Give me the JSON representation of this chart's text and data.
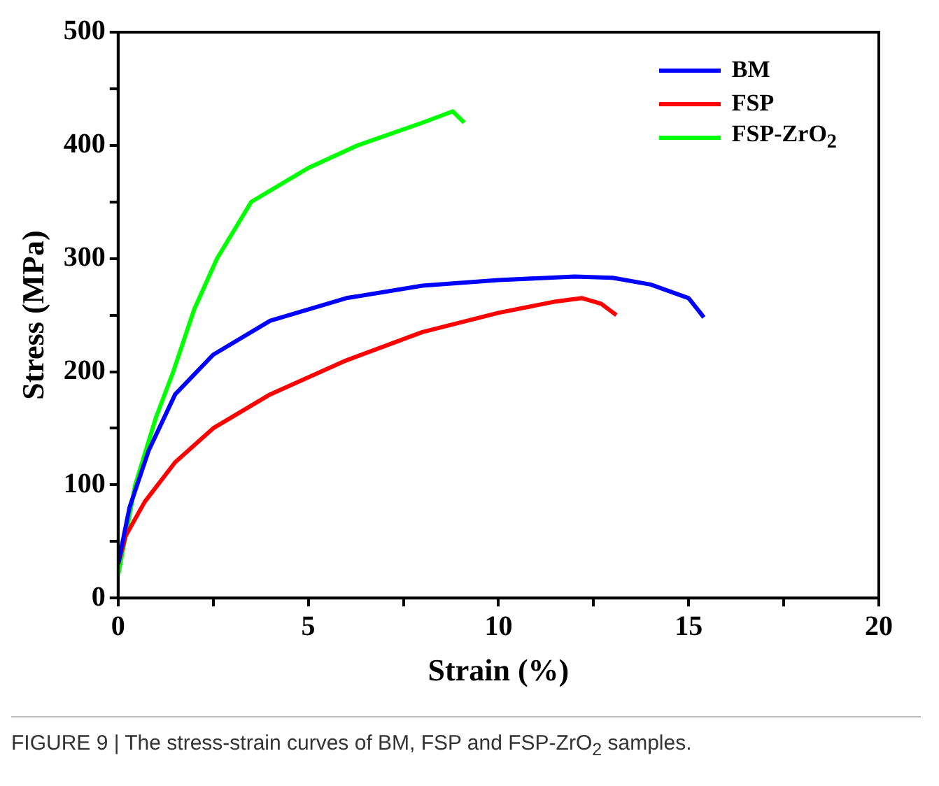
{
  "chart_data": {
    "type": "line",
    "xlabel": "Strain (%)",
    "ylabel": "Stress (MPa)",
    "xlim": [
      0,
      20
    ],
    "xticks": [
      0,
      {
        "value": 2.5,
        "label": null
      },
      5,
      {
        "value": 7.5,
        "label": null
      },
      10,
      {
        "value": 12.5,
        "label": null
      },
      15,
      {
        "value": 17.5,
        "label": null
      },
      20
    ],
    "ylim": [
      0,
      500
    ],
    "yticks": [
      0,
      {
        "value": 50,
        "label": null
      },
      100,
      {
        "value": 150,
        "label": null
      },
      200,
      {
        "value": 250,
        "label": null
      },
      300,
      {
        "value": 350,
        "label": null
      },
      400,
      {
        "value": 450,
        "label": null
      },
      500
    ],
    "grid": false,
    "legend": "top right",
    "marker": "none",
    "line_style": "solid",
    "annotations": [
      "FIGURE 9 | The stress-strain curves of BM, FSP and FSP-ZrO$_{2}$ samples."
    ],
    "series": [
      {
        "name": "BM",
        "color": "#0000ff",
        "x": [
          0,
          0.3,
          0.8,
          1.5,
          2.5,
          4,
          6,
          8,
          10,
          12,
          13,
          14,
          15,
          15.4
        ],
        "values": [
          30,
          80,
          130,
          180,
          215,
          245,
          265,
          276,
          281,
          284,
          283,
          277,
          265,
          248
        ]
      },
      {
        "name": "FSP",
        "color": "#ff0000",
        "x": [
          0,
          0.2,
          0.7,
          1.5,
          2.5,
          4,
          6,
          8,
          10,
          11.5,
          12.2,
          12.7,
          13.1
        ],
        "values": [
          30,
          55,
          85,
          120,
          150,
          180,
          210,
          235,
          252,
          262,
          265,
          260,
          250
        ]
      },
      {
        "name": "FSP-ZrO$_{2}$",
        "color": "#00ff00",
        "x": [
          0,
          0.45,
          1,
          1.45,
          2,
          2.6,
          3.5,
          5,
          6.3,
          8,
          8.8,
          9.1
        ],
        "values": [
          20,
          100,
          160,
          200,
          255,
          300,
          350,
          380,
          400,
          420,
          430,
          420
        ]
      }
    ]
  }
}
